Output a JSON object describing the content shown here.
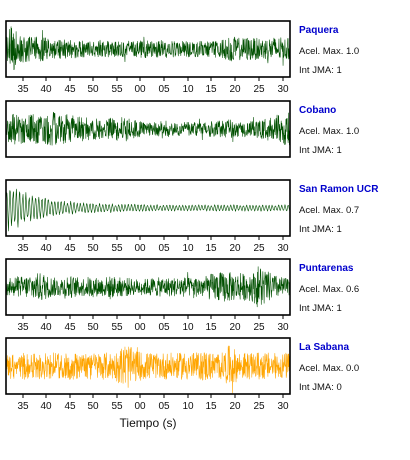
{
  "chart_data": {
    "type": "line",
    "xlabel": "Tiempo (s)",
    "tick_labels": [
      "35",
      "40",
      "45",
      "50",
      "55",
      "00",
      "05",
      "10",
      "15",
      "20",
      "25",
      "30"
    ],
    "accel_prefix": "Acel. Max.",
    "int_prefix": "Int JMA:",
    "name_color": "#0000cc",
    "grid": false,
    "panels": [
      {
        "station": "Paquera",
        "acel_max": "1.0",
        "int_jma": "1",
        "color": "#005000",
        "show_ticks": true,
        "envelope": [
          0.95,
          0.9,
          0.55,
          0.5,
          0.45,
          0.45,
          0.45,
          0.4,
          0.35,
          0.35,
          0.35,
          0.35,
          0.32,
          0.3,
          0.3,
          0.3,
          0.3,
          0.3,
          0.3,
          0.3,
          0.3,
          0.3,
          0.3,
          0.35,
          0.3,
          0.3,
          0.35,
          0.3,
          0.3,
          0.3,
          0.3,
          0.3,
          0.3,
          0.3,
          0.3,
          0.35,
          0.35,
          0.45,
          0.45,
          0.4,
          0.45,
          0.4,
          0.4,
          0.4,
          0.45,
          0.45,
          0.4,
          0.4
        ],
        "style": "noise"
      },
      {
        "station": "Cobano",
        "acel_max": "1.0",
        "int_jma": "1",
        "color": "#005000",
        "show_ticks": false,
        "envelope": [
          0.45,
          0.55,
          0.6,
          0.6,
          0.55,
          0.55,
          0.55,
          0.6,
          0.65,
          0.55,
          0.55,
          0.5,
          0.45,
          0.45,
          0.4,
          0.4,
          0.35,
          0.4,
          0.45,
          0.45,
          0.45,
          0.35,
          0.3,
          0.25,
          0.25,
          0.25,
          0.3,
          0.3,
          0.25,
          0.25,
          0.25,
          0.25,
          0.25,
          0.25,
          0.3,
          0.3,
          0.3,
          0.35,
          0.3,
          0.3,
          0.3,
          0.3,
          0.35,
          0.4,
          0.45,
          0.55,
          0.6,
          0.65
        ],
        "style": "noise"
      },
      {
        "station": "San Ramon UCR",
        "acel_max": "0.7",
        "int_jma": "1",
        "color": "#005000",
        "show_ticks": true,
        "envelope": [
          0.95,
          0.8,
          0.7,
          0.6,
          0.5,
          0.45,
          0.45,
          0.4,
          0.3,
          0.3,
          0.25,
          0.25,
          0.2,
          0.2,
          0.2,
          0.2,
          0.18,
          0.18,
          0.15,
          0.15,
          0.15,
          0.15,
          0.15,
          0.15,
          0.12,
          0.12,
          0.12,
          0.12,
          0.12,
          0.12,
          0.12,
          0.12,
          0.12,
          0.12,
          0.12,
          0.12,
          0.12,
          0.12,
          0.12,
          0.12,
          0.12,
          0.12,
          0.12,
          0.12,
          0.12,
          0.12,
          0.12,
          0.12
        ],
        "style": "oscillation"
      },
      {
        "station": "Puntarenas",
        "acel_max": "0.6",
        "int_jma": "1",
        "color": "#005000",
        "show_ticks": true,
        "envelope": [
          0.3,
          0.35,
          0.4,
          0.4,
          0.45,
          0.5,
          0.55,
          0.4,
          0.35,
          0.35,
          0.45,
          0.4,
          0.35,
          0.35,
          0.4,
          0.35,
          0.35,
          0.4,
          0.4,
          0.35,
          0.35,
          0.3,
          0.3,
          0.3,
          0.35,
          0.35,
          0.35,
          0.35,
          0.35,
          0.4,
          0.35,
          0.35,
          0.4,
          0.4,
          0.5,
          0.55,
          0.55,
          0.55,
          0.5,
          0.5,
          0.5,
          0.55,
          0.9,
          0.6,
          0.5,
          0.4,
          0.35,
          0.3
        ],
        "style": "noise"
      },
      {
        "station": "La Sabana",
        "acel_max": "0.0",
        "int_jma": "0",
        "color": "#ffa500",
        "show_ticks": true,
        "envelope": [
          0.4,
          0.5,
          0.45,
          0.5,
          0.45,
          0.5,
          0.5,
          0.45,
          0.5,
          0.45,
          0.5,
          0.5,
          0.45,
          0.45,
          0.5,
          0.5,
          0.5,
          0.5,
          0.5,
          0.7,
          0.9,
          0.6,
          0.55,
          0.5,
          0.5,
          0.45,
          0.5,
          0.5,
          0.45,
          0.5,
          0.55,
          0.5,
          0.5,
          0.6,
          0.5,
          0.5,
          0.5,
          0.8,
          0.6,
          0.5,
          0.5,
          0.45,
          0.55,
          0.5,
          0.5,
          0.45,
          0.5,
          0.5
        ],
        "style": "noise"
      }
    ]
  }
}
